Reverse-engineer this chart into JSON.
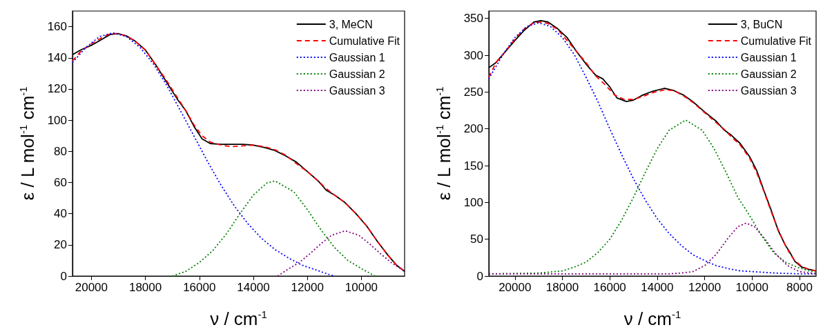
{
  "chart_data": [
    {
      "type": "line",
      "xlabel": "ν / cm$^{-1}$",
      "ylabel": "ε / L mol$^{-1}$ cm$^{-1}$",
      "xlim": [
        20700,
        8400
      ],
      "xticks": [
        20000,
        18000,
        16000,
        14000,
        12000,
        10000
      ],
      "ylim": [
        0,
        170
      ],
      "yticks": [
        0,
        20,
        40,
        60,
        80,
        100,
        120,
        140,
        160
      ],
      "legend": "top right",
      "grid": false,
      "marker": "none",
      "series": [
        {
          "name": "3, MeCN",
          "color": "#000000",
          "line_style": "solid",
          "x": [
            20700,
            20400,
            20000,
            19600,
            19300,
            19000,
            18700,
            18400,
            18000,
            17600,
            17200,
            16800,
            16500,
            16200,
            15900,
            15600,
            15200,
            14800,
            14400,
            14000,
            13600,
            13200,
            12800,
            12400,
            12000,
            11600,
            11300,
            11000,
            10600,
            10200,
            9800,
            9400,
            9000,
            8700,
            8400
          ],
          "values": [
            142,
            145,
            148,
            152,
            155,
            155.5,
            154,
            151,
            145,
            135,
            124,
            113,
            106,
            96,
            88,
            85,
            84.5,
            84.5,
            84.5,
            84,
            82.5,
            80.5,
            77,
            73,
            67,
            61,
            55,
            52,
            47,
            40,
            32,
            22,
            13,
            7,
            3
          ]
        },
        {
          "name": "Cumulative Fit",
          "color": "#ff0000",
          "line_style": "dashed",
          "x": [
            20700,
            20400,
            20000,
            19600,
            19300,
            19000,
            18700,
            18400,
            18000,
            17600,
            17200,
            16800,
            16500,
            16200,
            15900,
            15600,
            15200,
            14800,
            14400,
            14000,
            13600,
            13200,
            12800,
            12400,
            12000,
            11600,
            11300,
            11000,
            10600,
            10200,
            9800,
            9400,
            9000,
            8700,
            8400
          ],
          "values": [
            138,
            144,
            149,
            153,
            155.5,
            155.5,
            154,
            151,
            145,
            135,
            125,
            114,
            106,
            97,
            90,
            86,
            84,
            83,
            83.5,
            84,
            83,
            81,
            77.5,
            72,
            67,
            61,
            56,
            52,
            47,
            40,
            32,
            22,
            13,
            7,
            3
          ]
        },
        {
          "name": "Gaussian 1",
          "color": "#0000ff",
          "line_style": "dotted",
          "x": [
            20700,
            20200,
            19700,
            19200,
            18700,
            18200,
            17700,
            17200,
            16700,
            16200,
            15700,
            15200,
            14700,
            14200,
            13700,
            13200,
            12700,
            12200,
            11700,
            11200,
            11000
          ],
          "values": [
            137,
            146.7,
            153.6,
            156,
            153.6,
            146.7,
            136,
            122,
            106,
            89.8,
            73.5,
            58.3,
            44.8,
            33.5,
            24.2,
            17,
            11.6,
            7,
            4,
            1,
            0
          ]
        },
        {
          "name": "Gaussian 2",
          "color": "#008000",
          "line_style": "dotted",
          "x": [
            17000,
            16500,
            16000,
            15500,
            15000,
            14500,
            14000,
            13500,
            13200,
            12500,
            12000,
            11500,
            11000,
            10500,
            10000,
            9500
          ],
          "values": [
            0,
            3,
            8.7,
            16.4,
            27,
            40,
            52,
            59.7,
            61,
            54,
            42.6,
            29.7,
            18.4,
            10,
            4.8,
            0
          ]
        },
        {
          "name": "Gaussian 3",
          "color": "#800080",
          "line_style": "dotted",
          "x": [
            13100,
            12700,
            12300,
            11900,
            11500,
            11100,
            10600,
            10100,
            9700,
            9300,
            8900,
            8400
          ],
          "values": [
            0,
            4.6,
            8.7,
            14.4,
            20.7,
            26.2,
            29,
            26.2,
            20.7,
            14.4,
            8.7,
            3
          ]
        }
      ]
    },
    {
      "type": "line",
      "xlabel": "ν / cm$^{-1}$",
      "ylabel": "ε / L mol$^{-1}$ cm$^{-1}$",
      "xlim": [
        21100,
        7300
      ],
      "xticks": [
        20000,
        18000,
        16000,
        14000,
        12000,
        10000,
        8000
      ],
      "ylim": [
        0,
        360
      ],
      "yticks": [
        0,
        50,
        100,
        150,
        200,
        250,
        300,
        350
      ],
      "legend": "top right",
      "grid": false,
      "marker": "none",
      "series": [
        {
          "name": "3, BuCN",
          "color": "#000000",
          "line_style": "solid",
          "x": [
            21100,
            20800,
            20400,
            20000,
            19600,
            19200,
            18900,
            18600,
            18200,
            17800,
            17400,
            17000,
            16600,
            16300,
            16000,
            15700,
            15300,
            15000,
            14600,
            14200,
            13700,
            13300,
            12900,
            12500,
            12000,
            11500,
            11200,
            10900,
            10500,
            10100,
            9800,
            9500,
            9200,
            8900,
            8600,
            8400,
            8200,
            7900,
            7600,
            7300
          ],
          "values": [
            283,
            290,
            305,
            320,
            334,
            345,
            347,
            345,
            336,
            324,
            305,
            288,
            273,
            268,
            257,
            242,
            237,
            239,
            246,
            251,
            255,
            252,
            246,
            237,
            223,
            210,
            199,
            192,
            180,
            162,
            143,
            116,
            90,
            62,
            42,
            32,
            20,
            12,
            9,
            7
          ]
        },
        {
          "name": "Cumulative Fit",
          "color": "#ff0000",
          "line_style": "dashed",
          "x": [
            21100,
            20800,
            20400,
            20000,
            19600,
            19200,
            18900,
            18600,
            18200,
            17800,
            17400,
            17000,
            16600,
            16200,
            15800,
            15400,
            15000,
            14600,
            14200,
            13700,
            13300,
            12900,
            12500,
            12000,
            11500,
            11200,
            10900,
            10500,
            10100,
            9800,
            9500,
            9200,
            8900,
            8600,
            8400,
            8200,
            7900,
            7600,
            7300
          ],
          "values": [
            270,
            290,
            305,
            322,
            336,
            344,
            345,
            343,
            335,
            320,
            305,
            290,
            272,
            260,
            246,
            240,
            240,
            244,
            249,
            253,
            252,
            245,
            236,
            222,
            208,
            200,
            190,
            178,
            160,
            140,
            115,
            88,
            63,
            42,
            30,
            21,
            13,
            9,
            7
          ]
        },
        {
          "name": "Gaussian 1",
          "color": "#0000ff",
          "line_style": "dotted",
          "x": [
            21100,
            20500,
            20000,
            19500,
            19000,
            18500,
            18000,
            17500,
            17000,
            16500,
            16000,
            15500,
            15000,
            14500,
            14000,
            13500,
            13000,
            12500,
            12000,
            11500,
            11000,
            10500,
            10000,
            9000,
            8000,
            7300
          ],
          "values": [
            268,
            301,
            324,
            339,
            344,
            339,
            324,
            301,
            270,
            237,
            200,
            165,
            132,
            103,
            78,
            58,
            42,
            29,
            21,
            14,
            10,
            7,
            6,
            4,
            3,
            3
          ]
        },
        {
          "name": "Gaussian 2",
          "color": "#008000",
          "line_style": "dotted",
          "x": [
            21100,
            19000,
            18000,
            17500,
            17000,
            16500,
            16000,
            15500,
            15000,
            14500,
            14000,
            13500,
            12800,
            12100,
            11600,
            11100,
            10600,
            10100,
            9600,
            9100,
            8600,
            8100,
            7600,
            7300
          ],
          "values": [
            3,
            4,
            7,
            12,
            19,
            32,
            50,
            76,
            107,
            141,
            173,
            198,
            212,
            198,
            173,
            141,
            107,
            82,
            55,
            32,
            19,
            12,
            7,
            5
          ]
        },
        {
          "name": "Gaussian 3",
          "color": "#800080",
          "line_style": "dotted",
          "x": [
            21100,
            13500,
            13000,
            12500,
            12000,
            11500,
            11000,
            10600,
            10250,
            9900,
            9500,
            9000,
            8500,
            8000,
            7300
          ],
          "values": [
            3,
            3,
            4,
            6,
            14,
            30,
            52,
            67,
            72,
            67,
            52,
            30,
            14,
            6,
            3
          ]
        }
      ]
    }
  ]
}
